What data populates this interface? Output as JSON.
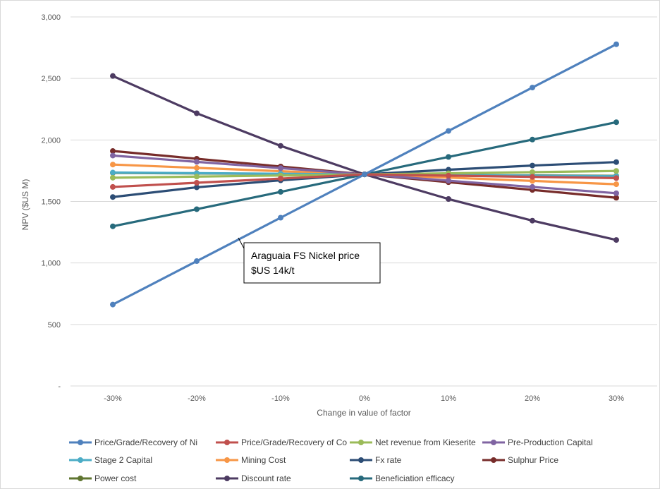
{
  "chart_data": {
    "type": "line",
    "title": "",
    "xlabel": "Change in value of factor",
    "ylabel": "NPV ($US M)",
    "categories": [
      "-30%",
      "-20%",
      "-10%",
      "0%",
      "10%",
      "20%",
      "30%"
    ],
    "ylim": [
      0,
      3000
    ],
    "yticks": [
      0,
      500,
      1000,
      1500,
      2000,
      2500,
      3000
    ],
    "ytick_labels": [
      "-",
      "500",
      "1,000",
      "1,500",
      "2,000",
      "2,500",
      "3,000"
    ],
    "grid": true,
    "legend_position": "bottom",
    "series": [
      {
        "name": "Price/Grade/Recovery of Ni",
        "color": "#4f81bd",
        "values": [
          662,
          1015,
          1368,
          1720,
          2073,
          2426,
          2778
        ]
      },
      {
        "name": "Price/Grade/Recovery of Co",
        "color": "#c0504d",
        "values": [
          1618,
          1652,
          1686,
          1720,
          1710,
          1700,
          1690
        ]
      },
      {
        "name": "Net revenue from Kieserite",
        "color": "#9bbb59",
        "values": [
          1693,
          1702,
          1711,
          1720,
          1729,
          1738,
          1748
        ]
      },
      {
        "name": "Pre-Production Capital",
        "color": "#8064a2",
        "values": [
          1873,
          1822,
          1771,
          1720,
          1669,
          1618,
          1567
        ]
      },
      {
        "name": "Stage 2 Capital",
        "color": "#4bacc6",
        "values": [
          1735,
          1730,
          1725,
          1720,
          1715,
          1710,
          1705
        ]
      },
      {
        "name": "Mining Cost",
        "color": "#f79646",
        "values": [
          1800,
          1773,
          1746,
          1720,
          1694,
          1667,
          1640
        ]
      },
      {
        "name": "Fx rate",
        "color": "#2c4d75",
        "values": [
          1536,
          1615,
          1672,
          1720,
          1758,
          1792,
          1820
        ]
      },
      {
        "name": "Sulphur Price",
        "color": "#772c2a",
        "values": [
          1910,
          1847,
          1784,
          1720,
          1657,
          1594,
          1530
        ]
      },
      {
        "name": "Power cost",
        "color": "#5f7530",
        "values": [
          1732,
          1728,
          1724,
          1720,
          1716,
          1712,
          1708
        ]
      },
      {
        "name": "Discount rate",
        "color": "#4d3b62",
        "values": [
          2520,
          2217,
          1952,
          1720,
          1520,
          1344,
          1187
        ]
      },
      {
        "name": "Beneficiation efficacy",
        "color": "#276a7c",
        "values": [
          1298,
          1437,
          1578,
          1720,
          1862,
          2003,
          2144
        ]
      }
    ],
    "annotations": [
      {
        "text_lines": [
          "Araguaia FS Nickel price",
          "$US 14k/t"
        ],
        "points_to": {
          "category": "-15%",
          "value": 1200
        }
      }
    ]
  }
}
